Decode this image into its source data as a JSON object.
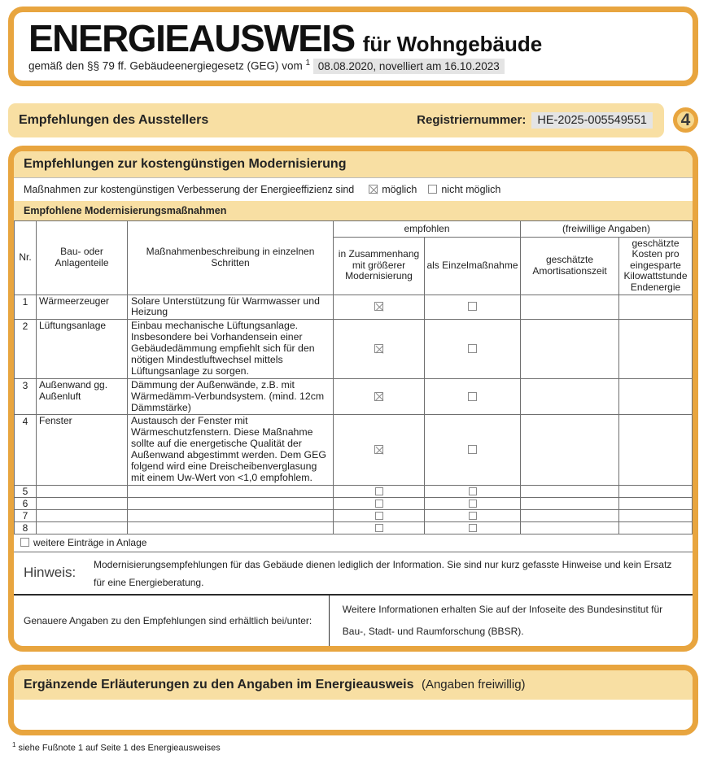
{
  "header": {
    "title": "ENERGIEAUSWEIS",
    "title_suffix": "für Wohngebäude",
    "law_text": "gemäß den §§ 79 ff. Gebäudeenergiegesetz (GEG) vom",
    "footnote_marker": "1",
    "law_date": "08.08.2020, novelliert am 16.10.2023"
  },
  "section_bar": {
    "title": "Empfehlungen des Ausstellers",
    "reg_label": "Registriernummer:",
    "reg_value": "HE-2025-005549551",
    "page_number": "4"
  },
  "recommendations": {
    "box_title": "Empfehlungen zur kostengünstigen Modernisierung",
    "possible_line": {
      "text": "Maßnahmen zur kostengünstigen Verbesserung der Energieeffizienz sind",
      "option_possible": "möglich",
      "option_not_possible": "nicht möglich",
      "possible_checked": true,
      "not_possible_checked": false
    },
    "table_title": "Empfohlene Modernisierungsmaßnahmen",
    "table": {
      "group_headers": {
        "recommended": "empfohlen",
        "voluntary": "(freiwillige Angaben)"
      },
      "columns": {
        "nr": "Nr.",
        "part": "Bau- oder Anlagenteile",
        "desc": "Maßnahmenbeschreibung in einzelnen Schritten",
        "combined": "in Zusammenhang mit größerer Modernisierung",
        "single": "als Einzelmaßnahme",
        "amortization": "geschätzte Amortisationszeit",
        "cost": "geschätzte Kosten pro eingesparte Kilowattstunde Endenergie"
      },
      "rows": [
        {
          "nr": "1",
          "part": "Wärmeerzeuger",
          "description": "Solare Unterstützung für Warmwasser und Heizung",
          "combined_checked": true,
          "single_checked": false,
          "amortization": "",
          "cost": ""
        },
        {
          "nr": "2",
          "part": "Lüftungsanlage",
          "description": "Einbau mechanische Lüftungsanlage. Insbesondere bei Vorhandensein einer Gebäudedämmung empfiehlt sich für den nötigen Mindestluftwechsel mittels Lüftungsanlage zu sorgen.",
          "combined_checked": true,
          "single_checked": false,
          "amortization": "",
          "cost": ""
        },
        {
          "nr": "3",
          "part": "Außenwand gg. Außenluft",
          "description": "Dämmung der Außenwände, z.B. mit Wärmedämm-Verbundsystem. (mind. 12cm Dämmstärke)",
          "combined_checked": true,
          "single_checked": false,
          "amortization": "",
          "cost": ""
        },
        {
          "nr": "4",
          "part": "Fenster",
          "description": "Austausch der Fenster mit Wärmeschutzfenstern. Diese Maßnahme sollte auf die energetische Qualität der Außenwand abgestimmt werden. Dem GEG folgend wird eine Dreischeibenverglasung mit einem Uw-Wert von <1,0 empfohlem.",
          "combined_checked": true,
          "single_checked": false,
          "amortization": "",
          "cost": ""
        },
        {
          "nr": "5",
          "part": "",
          "description": "",
          "combined_checked": false,
          "single_checked": false,
          "amortization": "",
          "cost": ""
        },
        {
          "nr": "6",
          "part": "",
          "description": "",
          "combined_checked": false,
          "single_checked": false,
          "amortization": "",
          "cost": ""
        },
        {
          "nr": "7",
          "part": "",
          "description": "",
          "combined_checked": false,
          "single_checked": false,
          "amortization": "",
          "cost": ""
        },
        {
          "nr": "8",
          "part": "",
          "description": "",
          "combined_checked": false,
          "single_checked": false,
          "amortization": "",
          "cost": ""
        }
      ]
    },
    "more_entries": {
      "label": "weitere Einträge in Anlage",
      "checked": false
    },
    "hint": {
      "label": "Hinweis:",
      "text": "Modernisierungsempfehlungen für das Gebäude dienen lediglich der Information. Sie sind nur kurz gefasste Hinweise und kein Ersatz für eine Energieberatung."
    },
    "details": {
      "left": "Genauere Angaben zu den Empfehlungen sind erhältlich bei/unter:",
      "right": "Weitere Informationen erhalten Sie auf der Infoseite des Bundesinstitut für Bau-, Stadt- und Raumforschung (BBSR)."
    }
  },
  "supplementary": {
    "title": "Ergänzende Erläuterungen zu den Angaben im Energieausweis",
    "title_suffix": "(Angaben freiwillig)"
  },
  "footnote": {
    "marker": "1",
    "text": "siehe Fußnote 1 auf Seite 1 des Energieausweises"
  },
  "colors": {
    "accent_orange": "#E8A53F",
    "tan_fill": "#F8DFA3",
    "circle_fill": "#F6D88F",
    "highlight_gray": "#E4E4E4",
    "table_border": "#6F6F6F"
  }
}
